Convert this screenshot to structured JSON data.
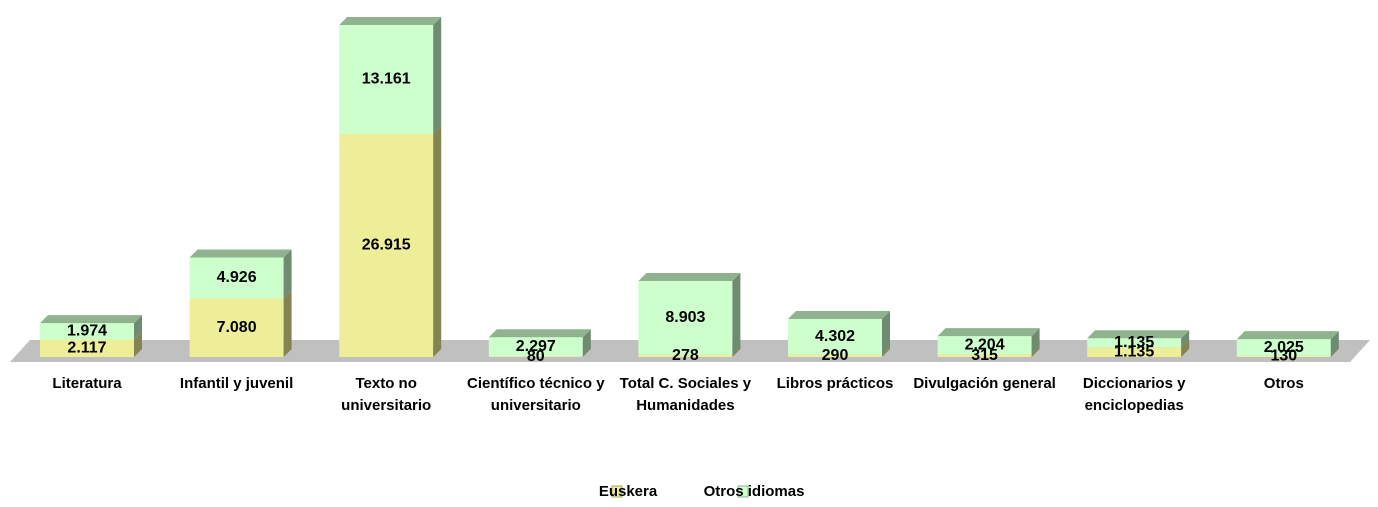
{
  "chart_data": {
    "type": "bar3d-stacked",
    "categories": [
      "Literatura",
      "Infantil y juvenil",
      "Texto no universitario",
      "Científico técnico y universitario",
      "Total C. Sociales y Humanidades",
      "Libros prácticos",
      "Divulgación general",
      "Diccionarios y enciclopedias",
      "Otros"
    ],
    "series": [
      {
        "name": "Euskera",
        "color": "#eeee99",
        "values": [
          2117,
          7080,
          26915,
          80,
          278,
          290,
          315,
          1135,
          130
        ],
        "value_labels": [
          "2.117",
          "7.080",
          "26.915",
          "80",
          "278",
          "290",
          "315",
          "1.135",
          "130"
        ]
      },
      {
        "name": "Otros idiomas",
        "color": "#ccffcc",
        "values": [
          1974,
          4926,
          13161,
          2297,
          8903,
          4302,
          2204,
          1135,
          2025
        ],
        "value_labels": [
          "1.974",
          "4.926",
          "13.161",
          "2.297",
          "8.903",
          "4.302",
          "2.204",
          "1.135",
          "2.025"
        ]
      }
    ],
    "legend": "bottom"
  }
}
